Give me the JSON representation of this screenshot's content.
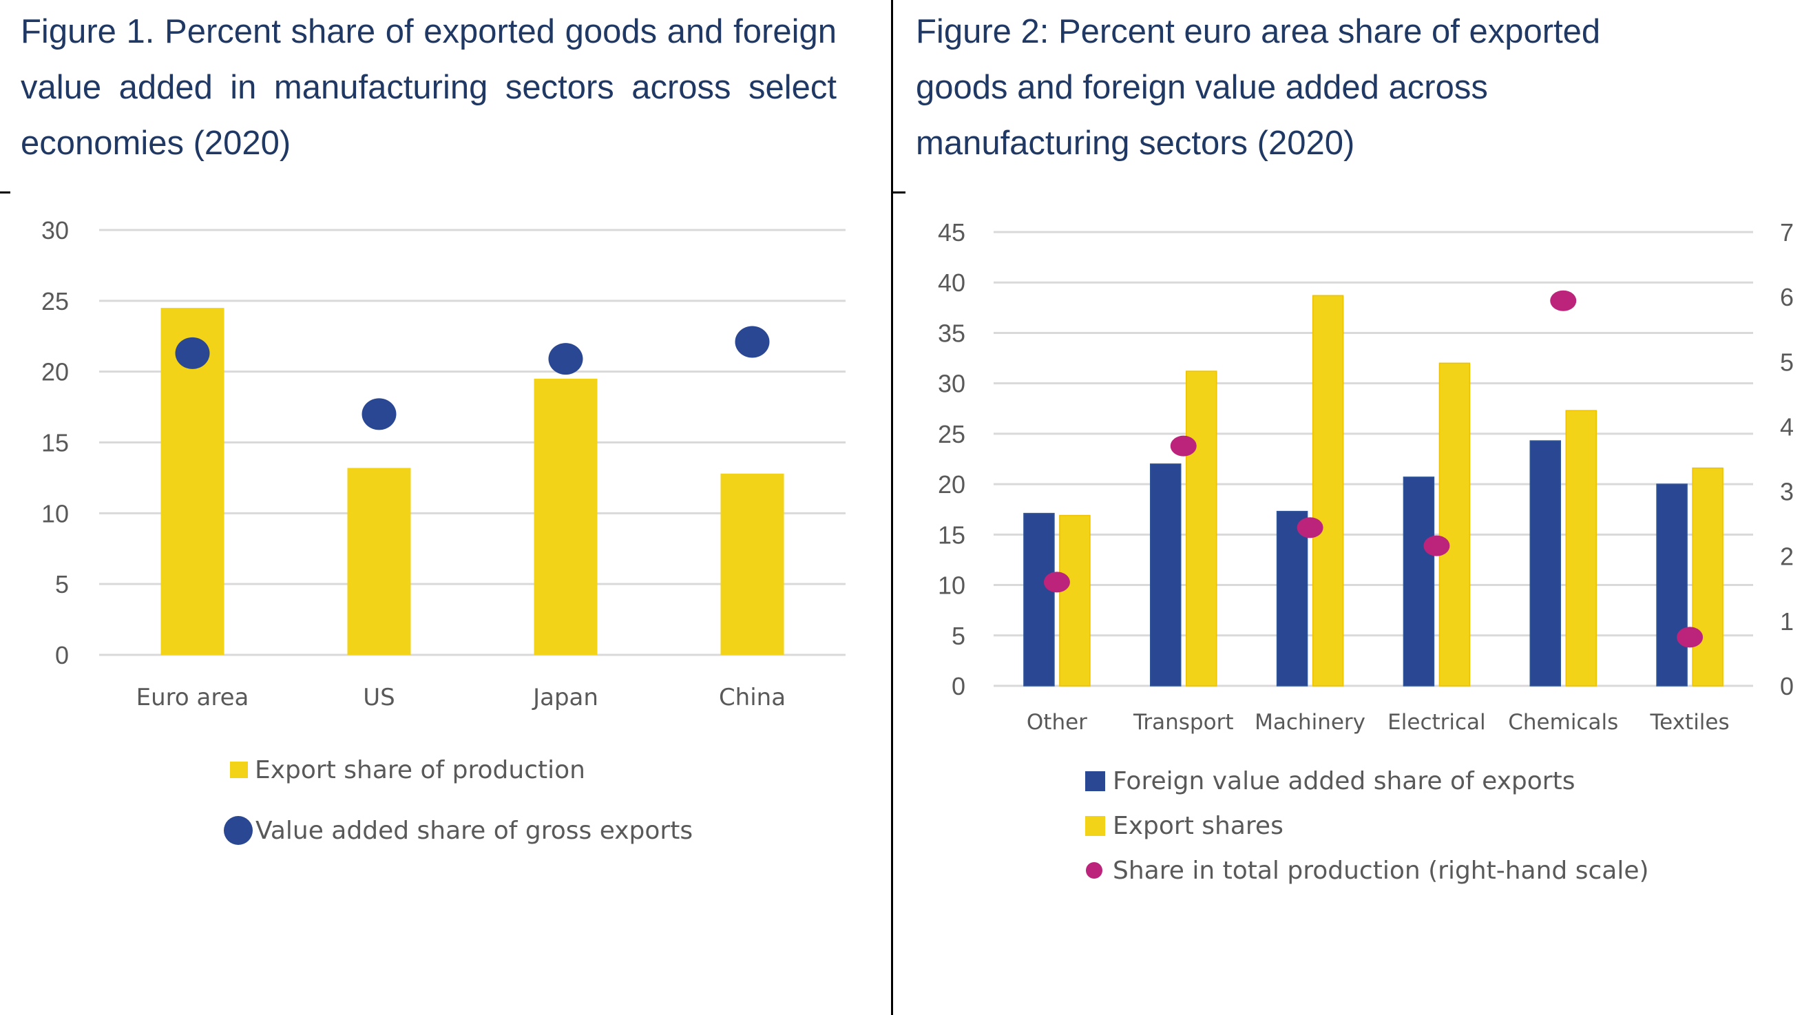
{
  "colors": {
    "title": "#1F3864",
    "navy_bar": "#2A4793",
    "yellow_bar": "#F2D317",
    "magenta_dot": "#BC237A",
    "gridline": "#D9D9D9",
    "axis_text": "#595959"
  },
  "figure1": {
    "title": "Figure 1. Percent share of exported goods and foreign value added in manufacturing sectors across select economies (2020)"
  },
  "figure2": {
    "title": "Figure 2: Percent euro area share of exported goods and foreign value added across manufacturing sectors (2020)"
  },
  "chart_data": [
    {
      "type": "bar",
      "title": "Figure 1. Percent share of exported goods and foreign value added in manufacturing sectors across select economies (2020)",
      "xlabel": "",
      "ylabel": "",
      "categories": [
        "Euro area",
        "US",
        "Japan",
        "China"
      ],
      "ylim": [
        0,
        30
      ],
      "yticks": [
        0,
        5,
        10,
        15,
        20,
        25,
        30
      ],
      "grid": true,
      "legend_position": "bottom",
      "series": [
        {
          "name": "Export share of production",
          "kind": "bar",
          "color": "#F2D317",
          "values": [
            24.5,
            13.2,
            19.5,
            12.8
          ]
        },
        {
          "name": "Value added share of gross exports",
          "kind": "scatter",
          "color": "#2A4793",
          "values": [
            21.3,
            17.0,
            20.9,
            22.1
          ]
        }
      ]
    },
    {
      "type": "bar",
      "title": "Figure 2: Percent euro area share of exported goods and foreign value added across manufacturing sectors (2020)",
      "xlabel": "",
      "ylabel": "",
      "categories": [
        "Other",
        "Transport",
        "Machinery",
        "Electrical",
        "Chemicals",
        "Textiles"
      ],
      "ylim": [
        0,
        45
      ],
      "yticks": [
        0,
        5,
        10,
        15,
        20,
        25,
        30,
        35,
        40,
        45
      ],
      "y2lim": [
        0,
        7
      ],
      "y2ticks": [
        0,
        1,
        2,
        3,
        4,
        5,
        6,
        7
      ],
      "grid": true,
      "legend_position": "bottom",
      "series": [
        {
          "name": "Foreign value added share of exports",
          "kind": "bar",
          "axis": "left",
          "color": "#2A4793",
          "values": [
            17.1,
            22.0,
            17.3,
            20.7,
            24.3,
            20.0
          ]
        },
        {
          "name": "Export shares",
          "kind": "bar",
          "axis": "left",
          "color": "#F2D317",
          "values": [
            16.9,
            31.2,
            38.7,
            32.0,
            27.3,
            21.6
          ]
        },
        {
          "name": "Share in total production (right-hand scale)",
          "kind": "scatter",
          "axis": "right",
          "color": "#BC237A",
          "values": [
            1.6,
            3.7,
            2.44,
            2.16,
            5.94,
            0.75
          ]
        }
      ]
    }
  ]
}
